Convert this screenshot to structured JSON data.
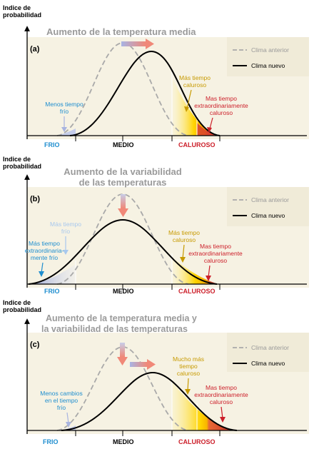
{
  "colors": {
    "panel_bg": "#f6f2e3",
    "old_curve": "#a9a9a9",
    "new_curve": "#000000",
    "blue_text": "#1f8ecf",
    "red_text": "#cc1f2a",
    "gold_text": "#c79a00",
    "title_gray": "#9a9a9a",
    "cold_fill": "#9aa9d6",
    "hot_fill_yellow": "#ffd400",
    "hot_fill_red": "#e0442c"
  },
  "axis": {
    "ylabel_line1": "Indice de",
    "ylabel_line2": "probabilidad",
    "cold_label": "FRIO",
    "mid_label": "MEDIO",
    "hot_label": "CALUROSO"
  },
  "legend": {
    "old_label": "Clima anterior",
    "new_label": "Clima nuevo"
  },
  "panels": [
    {
      "id": "a",
      "letter": "(a)",
      "title_lines": [
        "Aumento de la temperatura media"
      ],
      "cold_annotation": [
        "Menos tiempo",
        "frío"
      ],
      "hot_annotation": [
        "Más tiempo",
        "caluroso"
      ],
      "extreme_annotation": [
        "Mas tiempo",
        "extraordinariamente",
        "caluroso"
      ]
    },
    {
      "id": "b",
      "letter": "(b)",
      "title_lines": [
        "Aumento de la variabilidad",
        "de las temperaturas"
      ],
      "cold_annotation": [
        "Más tiempo",
        "frío"
      ],
      "cold_extreme_annotation": [
        "Más tiempo",
        "extraordinaria-",
        "mente frío"
      ],
      "hot_annotation": [
        "Más tiempo",
        "caluroso"
      ],
      "extreme_annotation": [
        "Mas tiempo",
        "extraordinariamente",
        "caluroso"
      ]
    },
    {
      "id": "c",
      "letter": "(c)",
      "title_lines": [
        "Aumento de la temperatura media y",
        "la variabilidad de las temperaturas"
      ],
      "cold_annotation": [
        "Menos cambios",
        "en el tiempo",
        "frío"
      ],
      "hot_annotation": [
        "Mucho más",
        "tiempo",
        "caluroso"
      ],
      "extreme_annotation": [
        "Mas tiempo",
        "extraordinariamente",
        "caluroso"
      ]
    }
  ]
}
